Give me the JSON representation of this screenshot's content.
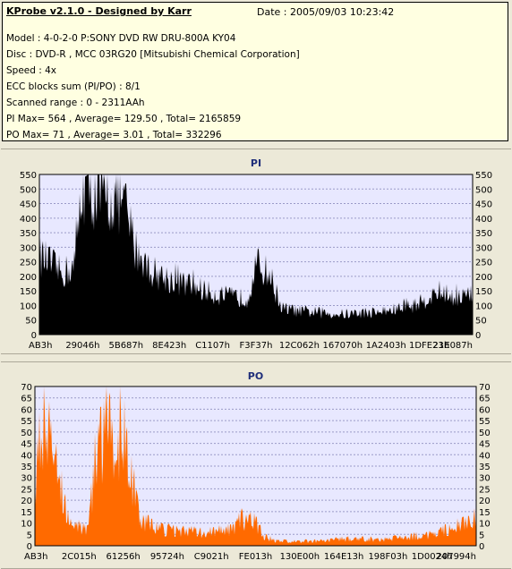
{
  "header": {
    "app_title": "KProbe v2.1.0 - Designed by Karr",
    "date": "Date : 2005/09/03 10:23:42",
    "lines": [
      "Model : 4-0-2-0 P:SONY    DVD RW DRU-800A  KY04",
      "Disc : DVD-R , MCC 03RG20  [Mitsubishi Chemical Corporation]",
      "Speed : 4x",
      "ECC blocks sum (PI/PO) : 8/1",
      "Scanned range : 0 - 2311AAh",
      "PI Max= 564 , Average= 129.50 , Total= 2165859",
      "PO Max= 71 , Average= 3.01 , Total= 332296"
    ]
  },
  "colors": {
    "panel_bg": "#ECE9D8",
    "info_bg": "#FFFFE1",
    "plot_bg": "#E8E8FF",
    "grid": "#9A9AC8",
    "pi_fill": "#000000",
    "po_fill": "#FF6A00",
    "title_color": "#1F2E7A"
  },
  "chart_data": [
    {
      "type": "area",
      "title": "PI",
      "ylim": [
        0,
        550
      ],
      "y_ticks": [
        "0",
        "50",
        "100",
        "150",
        "200",
        "250",
        "300",
        "350",
        "400",
        "450",
        "500",
        "550"
      ],
      "x_tick_labels": [
        "AB3h",
        "29046h",
        "5B687h",
        "8E423h",
        "C1107h",
        "F3F37h",
        "12C062h",
        "167070h",
        "1A2403h",
        "1DFE23h",
        "21E087h"
      ],
      "grid": true,
      "x": [
        0,
        0.02,
        0.05,
        0.08,
        0.1,
        0.11,
        0.13,
        0.15,
        0.18,
        0.2,
        0.22,
        0.24,
        0.25,
        0.27,
        0.3,
        0.33,
        0.36,
        0.4,
        0.44,
        0.48,
        0.5,
        0.51,
        0.53,
        0.56,
        0.58,
        0.6,
        0.65,
        0.7,
        0.75,
        0.8,
        0.85,
        0.88,
        0.9,
        0.93,
        0.96,
        1.0
      ],
      "values": [
        270,
        250,
        210,
        230,
        520,
        490,
        480,
        460,
        470,
        430,
        300,
        260,
        230,
        210,
        190,
        175,
        165,
        140,
        130,
        125,
        240,
        230,
        210,
        90,
        85,
        80,
        75,
        70,
        75,
        80,
        95,
        110,
        130,
        140,
        130,
        135
      ]
    },
    {
      "type": "area",
      "title": "PO",
      "ylim": [
        0,
        70
      ],
      "y_ticks": [
        "0",
        "5",
        "10",
        "15",
        "20",
        "25",
        "30",
        "35",
        "40",
        "45",
        "50",
        "55",
        "60",
        "65",
        "70"
      ],
      "x_tick_labels": [
        "AB3h",
        "2C015h",
        "61256h",
        "95724h",
        "C9021h",
        "FE013h",
        "130E00h",
        "164E13h",
        "198F03h",
        "1D0024h",
        "207994h"
      ],
      "grid": true,
      "x": [
        0,
        0.02,
        0.04,
        0.06,
        0.08,
        0.1,
        0.12,
        0.14,
        0.16,
        0.18,
        0.2,
        0.22,
        0.24,
        0.27,
        0.3,
        0.35,
        0.4,
        0.45,
        0.47,
        0.5,
        0.52,
        0.55,
        0.6,
        0.65,
        0.7,
        0.75,
        0.8,
        0.85,
        0.9,
        0.95,
        1.0
      ],
      "values": [
        28,
        55,
        40,
        25,
        12,
        8,
        8,
        42,
        50,
        48,
        50,
        28,
        12,
        8,
        7,
        6,
        6,
        7,
        12,
        10,
        4,
        2,
        2,
        2,
        3,
        3,
        3,
        4,
        5,
        8,
        12
      ]
    }
  ]
}
